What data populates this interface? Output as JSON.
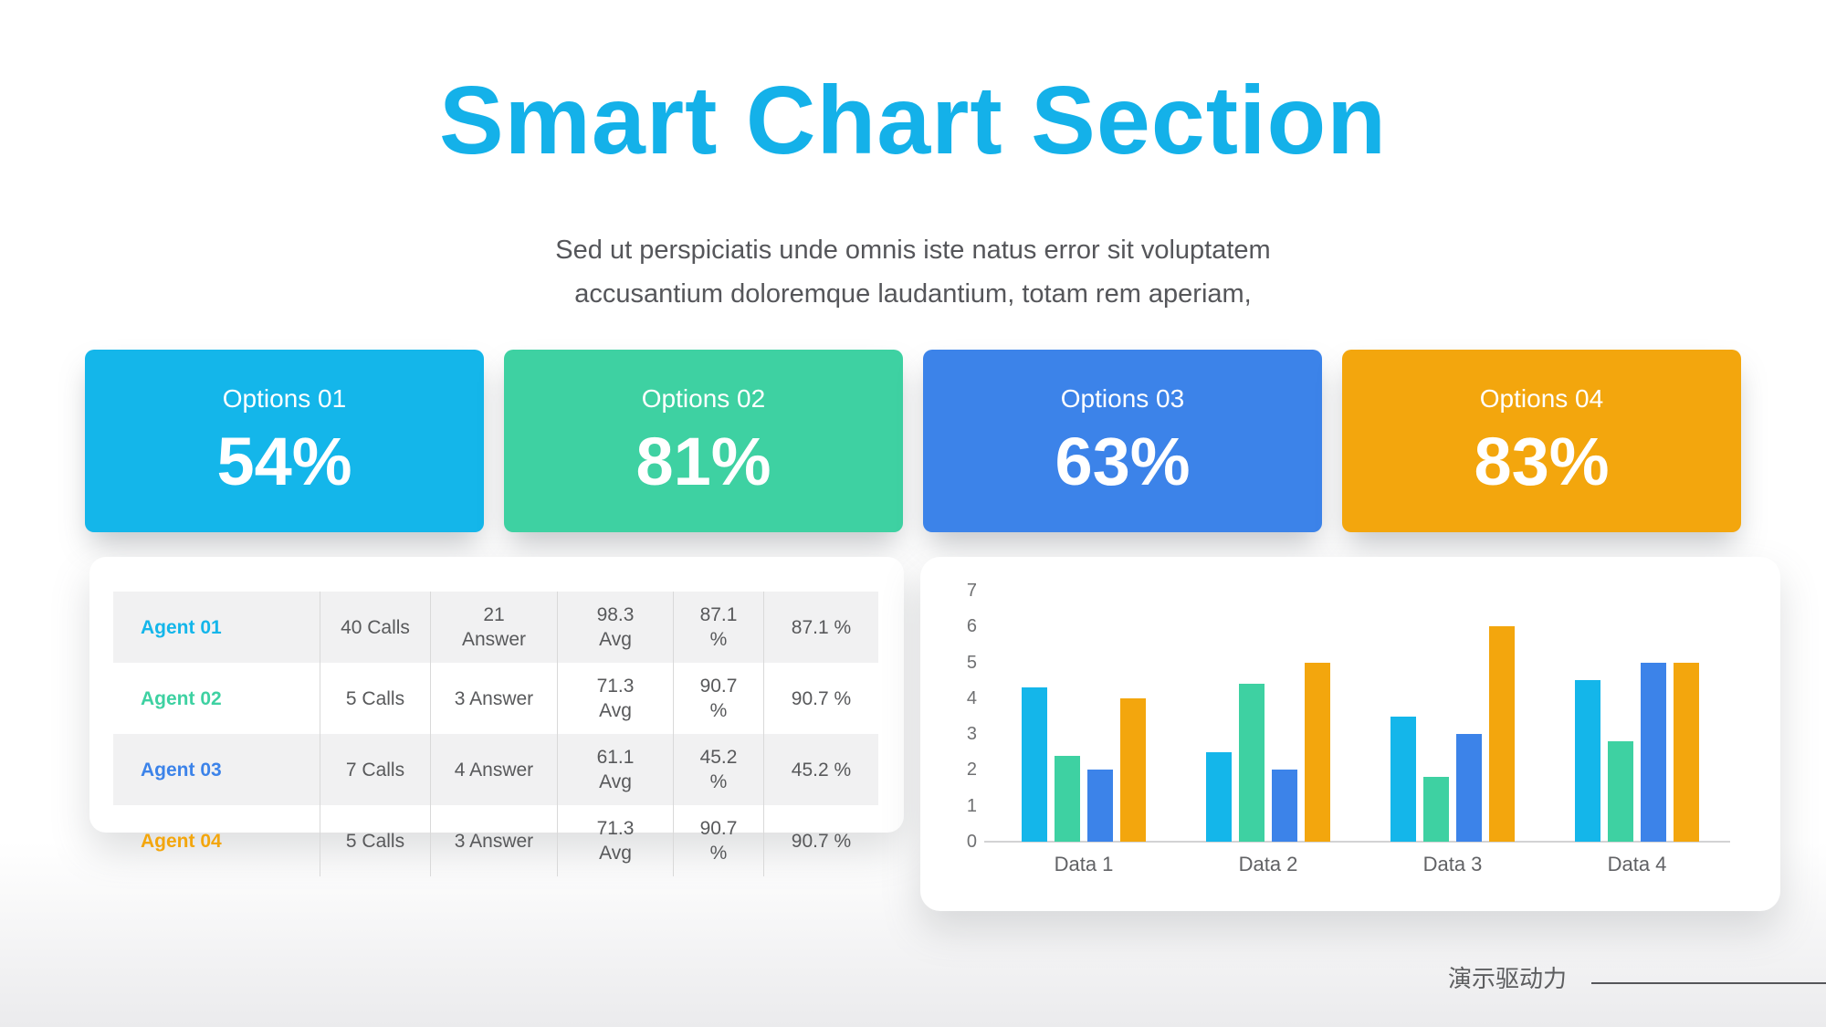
{
  "page": {
    "title": "Smart Chart Section",
    "subtitle_line1": "Sed ut perspiciatis unde omnis iste natus error sit voluptatem",
    "subtitle_line2": "accusantium doloremque laudantium, totam rem aperiam,",
    "footer_text": "演示驱动力"
  },
  "colors": {
    "title_accent": "#14b1e9",
    "cyan": "#14b6ea",
    "green": "#3ed1a2",
    "blue": "#3c83e9",
    "orange": "#f3a60d"
  },
  "option_cards": [
    {
      "label": "Options 01",
      "value": "54%",
      "color": "#14b6ea"
    },
    {
      "label": "Options 02",
      "value": "81%",
      "color": "#3ed1a2"
    },
    {
      "label": "Options 03",
      "value": "63%",
      "color": "#3c83e9"
    },
    {
      "label": "Options 04",
      "value": "83%",
      "color": "#f3a60d"
    }
  ],
  "table": {
    "rows": [
      {
        "agent": "Agent 01",
        "color": "#14b6ea",
        "shaded": true,
        "cells": [
          "40 Calls",
          "21 Answer",
          "98.3 Avg",
          "87.1 %",
          "87.1 %"
        ]
      },
      {
        "agent": "Agent 02",
        "color": "#3ed1a2",
        "shaded": false,
        "cells": [
          "5 Calls",
          "3 Answer",
          "71.3 Avg",
          "90.7 %",
          "90.7 %"
        ]
      },
      {
        "agent": "Agent 03",
        "color": "#3c83e9",
        "shaded": true,
        "cells": [
          "7 Calls",
          "4 Answer",
          "61.1 Avg",
          "45.2 %",
          "45.2 %"
        ]
      },
      {
        "agent": "Agent 04",
        "color": "#f3a60d",
        "shaded": false,
        "cells": [
          "5 Calls",
          "3 Answer",
          "71.3 Avg",
          "90.7 %",
          "90.7 %"
        ]
      }
    ]
  },
  "chart_data": {
    "type": "bar",
    "categories": [
      "Data 1",
      "Data 2",
      "Data 3",
      "Data 4"
    ],
    "series": [
      {
        "name": "series-cyan",
        "color": "#14b6ea",
        "values": [
          4.3,
          2.5,
          3.5,
          4.5
        ]
      },
      {
        "name": "series-green",
        "color": "#3ed1a2",
        "values": [
          2.4,
          4.4,
          1.8,
          2.8
        ]
      },
      {
        "name": "series-blue",
        "color": "#3c83e9",
        "values": [
          2.0,
          2.0,
          3.0,
          5.0
        ]
      },
      {
        "name": "series-orange",
        "color": "#f3a60d",
        "values": [
          4.0,
          5.0,
          6.0,
          5.0
        ]
      }
    ],
    "ylim": [
      0,
      7
    ],
    "yticks": [
      0,
      1,
      2,
      3,
      4,
      5,
      6,
      7
    ],
    "grid": false,
    "legend": "none"
  }
}
